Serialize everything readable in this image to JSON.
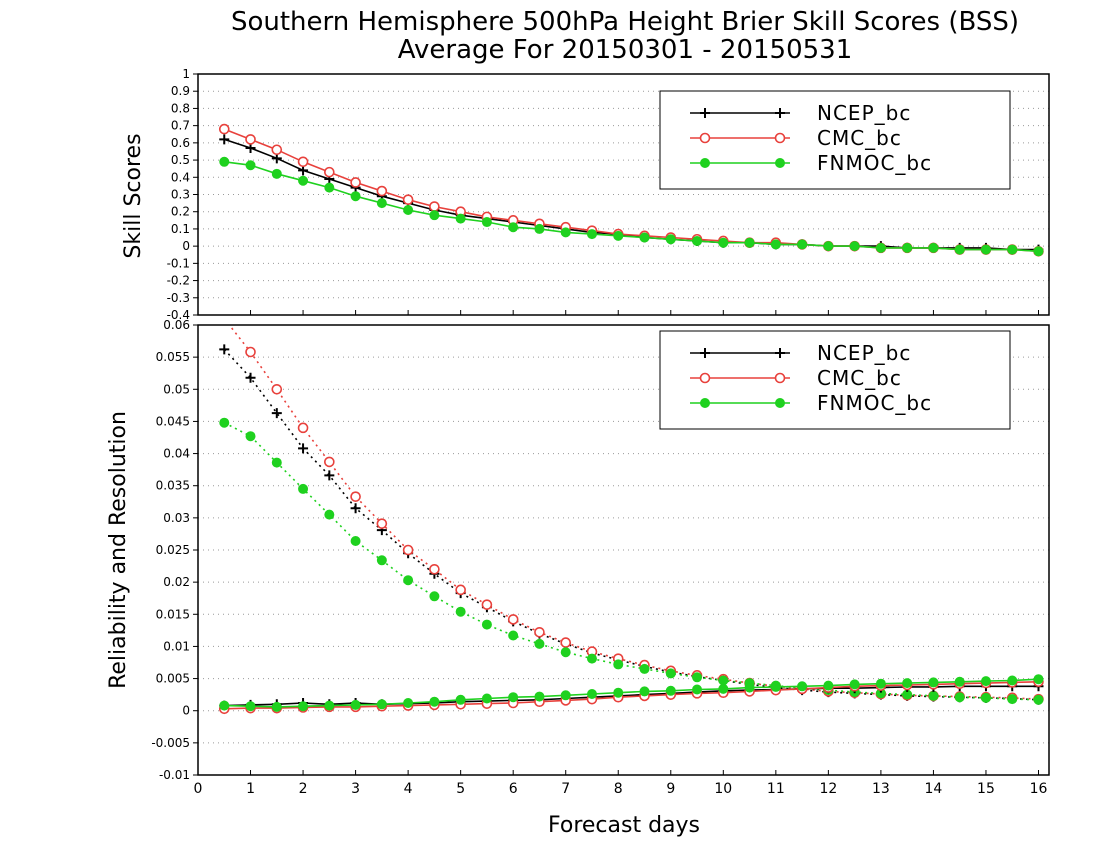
{
  "title": {
    "line1": "Southern Hemisphere 500hPa Height Brier Skill Scores (BSS)",
    "line2": "Average For 20150301 - 20150531"
  },
  "xlabel": "Forecast days",
  "colors": {
    "NCEP_bc": "#000000",
    "CMC_bc": "#e8413c",
    "FNMOC_bc": "#1fd11f"
  },
  "chart_data": [
    {
      "type": "line",
      "panel": "top",
      "ylabel": "Skill Scores",
      "xlim": [
        0,
        16.2
      ],
      "ylim": [
        -0.4,
        1
      ],
      "yticks": [
        "-0.4",
        "-0.3",
        "-0.2",
        "-0.1",
        "0",
        "0.1",
        "0.2",
        "0.3",
        "0.4",
        "0.5",
        "0.6",
        "0.7",
        "0.8",
        "0.9",
        "1"
      ],
      "xticks": [
        "0",
        "1",
        "2",
        "3",
        "4",
        "5",
        "6",
        "7",
        "8",
        "9",
        "10",
        "11",
        "12",
        "13",
        "14",
        "15",
        "16"
      ],
      "grid": "horizontal dotted",
      "legend_position": "top-right",
      "x": [
        0.5,
        1,
        1.5,
        2,
        2.5,
        3,
        3.5,
        4,
        4.5,
        5,
        5.5,
        6,
        6.5,
        7,
        7.5,
        8,
        8.5,
        9,
        9.5,
        10,
        10.5,
        11,
        11.5,
        12,
        12.5,
        13,
        13.5,
        14,
        14.5,
        15,
        15.5,
        16
      ],
      "series": [
        {
          "name": "NCEP_bc",
          "marker": "plus",
          "style": "solid",
          "values": [
            0.62,
            0.57,
            0.51,
            0.44,
            0.39,
            0.34,
            0.29,
            0.25,
            0.21,
            0.18,
            0.16,
            0.14,
            0.12,
            0.1,
            0.08,
            0.07,
            0.05,
            0.04,
            0.03,
            0.02,
            0.02,
            0.01,
            0.01,
            0.0,
            0.0,
            0.0,
            -0.01,
            -0.01,
            -0.01,
            -0.01,
            -0.02,
            -0.02
          ]
        },
        {
          "name": "CMC_bc",
          "marker": "open-circle",
          "style": "solid",
          "values": [
            0.68,
            0.62,
            0.56,
            0.49,
            0.43,
            0.37,
            0.32,
            0.27,
            0.23,
            0.2,
            0.17,
            0.15,
            0.13,
            0.11,
            0.09,
            0.07,
            0.06,
            0.05,
            0.04,
            0.03,
            0.02,
            0.02,
            0.01,
            0.0,
            0.0,
            -0.01,
            -0.01,
            -0.01,
            -0.02,
            -0.02,
            -0.02,
            -0.03
          ]
        },
        {
          "name": "FNMOC_bc",
          "marker": "filled-circle",
          "style": "solid",
          "values": [
            0.49,
            0.47,
            0.42,
            0.38,
            0.34,
            0.29,
            0.25,
            0.21,
            0.18,
            0.16,
            0.14,
            0.11,
            0.1,
            0.08,
            0.07,
            0.06,
            0.05,
            0.04,
            0.03,
            0.02,
            0.02,
            0.01,
            0.01,
            0.0,
            0.0,
            -0.01,
            -0.01,
            -0.01,
            -0.02,
            -0.02,
            -0.02,
            -0.03
          ]
        }
      ]
    },
    {
      "type": "line",
      "panel": "bottom",
      "ylabel": "Reliability and Resolution",
      "xlim": [
        0,
        16.2
      ],
      "ylim": [
        -0.01,
        0.06
      ],
      "yticks": [
        "-0.01",
        "-0.005",
        "0",
        "0.005",
        "0.01",
        "0.015",
        "0.02",
        "0.025",
        "0.03",
        "0.035",
        "0.04",
        "0.045",
        "0.05",
        "0.055",
        "0.06"
      ],
      "xticks": [
        "0",
        "1",
        "2",
        "3",
        "4",
        "5",
        "6",
        "7",
        "8",
        "9",
        "10",
        "11",
        "12",
        "13",
        "14",
        "15",
        "16"
      ],
      "grid": "horizontal dotted",
      "legend_position": "top-right",
      "x": [
        0.5,
        1,
        1.5,
        2,
        2.5,
        3,
        3.5,
        4,
        4.5,
        5,
        5.5,
        6,
        6.5,
        7,
        7.5,
        8,
        8.5,
        9,
        9.5,
        10,
        10.5,
        11,
        11.5,
        12,
        12.5,
        13,
        13.5,
        14,
        14.5,
        15,
        15.5,
        16
      ],
      "series": [
        {
          "name": "NCEP_bc",
          "marker": "plus",
          "group": "resolution",
          "style": "dotted",
          "values": [
            0.0562,
            0.0518,
            0.0463,
            0.0408,
            0.0366,
            0.0315,
            0.0281,
            0.0245,
            0.0213,
            0.0183,
            0.0161,
            0.0139,
            0.012,
            0.0104,
            0.009,
            0.0079,
            0.0069,
            0.006,
            0.0053,
            0.0047,
            0.0041,
            0.0036,
            0.0032,
            0.0029,
            0.0027,
            0.0025,
            0.0023,
            0.0022,
            0.0021,
            0.002,
            0.0019,
            0.0017
          ]
        },
        {
          "name": "CMC_bc",
          "marker": "open-circle",
          "group": "resolution",
          "style": "dotted",
          "values": [
            0.061,
            0.0558,
            0.05,
            0.044,
            0.0387,
            0.0333,
            0.0291,
            0.025,
            0.022,
            0.0188,
            0.0165,
            0.0142,
            0.0122,
            0.0106,
            0.0092,
            0.0081,
            0.0071,
            0.0062,
            0.0055,
            0.0049,
            0.0043,
            0.0038,
            0.0034,
            0.003,
            0.0028,
            0.0026,
            0.0024,
            0.0023,
            0.0022,
            0.0021,
            0.002,
            0.0018
          ]
        },
        {
          "name": "FNMOC_bc",
          "marker": "filled-circle",
          "group": "resolution",
          "style": "dotted",
          "values": [
            0.0448,
            0.0427,
            0.0386,
            0.0345,
            0.0305,
            0.0264,
            0.0234,
            0.0203,
            0.0178,
            0.0154,
            0.0134,
            0.0117,
            0.0104,
            0.0091,
            0.0081,
            0.0072,
            0.0065,
            0.0058,
            0.0052,
            0.0047,
            0.0043,
            0.0039,
            0.0035,
            0.0032,
            0.0029,
            0.0027,
            0.0025,
            0.0023,
            0.0021,
            0.002,
            0.0018,
            0.0017
          ]
        },
        {
          "name": "NCEP_bc",
          "marker": "plus",
          "group": "reliability",
          "style": "solid",
          "values": [
            0.0008,
            0.0009,
            0.001,
            0.0012,
            0.001,
            0.0012,
            0.001,
            0.0011,
            0.0012,
            0.0014,
            0.0015,
            0.0016,
            0.0017,
            0.0019,
            0.0021,
            0.0023,
            0.0025,
            0.0027,
            0.0029,
            0.0031,
            0.0032,
            0.0033,
            0.0034,
            0.0035,
            0.0035,
            0.0036,
            0.0037,
            0.0037,
            0.0038,
            0.0038,
            0.0038,
            0.0038
          ]
        },
        {
          "name": "CMC_bc",
          "marker": "open-circle",
          "group": "reliability",
          "style": "solid",
          "values": [
            0.0003,
            0.0004,
            0.0004,
            0.0005,
            0.0006,
            0.0006,
            0.0007,
            0.0008,
            0.0009,
            0.001,
            0.0011,
            0.0012,
            0.0014,
            0.0016,
            0.0018,
            0.0021,
            0.0023,
            0.0025,
            0.0027,
            0.0028,
            0.003,
            0.0032,
            0.0034,
            0.0036,
            0.0038,
            0.0039,
            0.004,
            0.0041,
            0.0042,
            0.0043,
            0.0044,
            0.0045
          ]
        },
        {
          "name": "FNMOC_bc",
          "marker": "filled-circle",
          "group": "reliability",
          "style": "solid",
          "values": [
            0.0008,
            0.0007,
            0.0006,
            0.0007,
            0.0008,
            0.0009,
            0.001,
            0.0012,
            0.0014,
            0.0017,
            0.0019,
            0.0021,
            0.0022,
            0.0024,
            0.0026,
            0.0028,
            0.003,
            0.0031,
            0.0033,
            0.0034,
            0.0036,
            0.0037,
            0.0038,
            0.0039,
            0.0041,
            0.0042,
            0.0043,
            0.0044,
            0.0045,
            0.0046,
            0.0047,
            0.0049
          ]
        }
      ]
    }
  ]
}
